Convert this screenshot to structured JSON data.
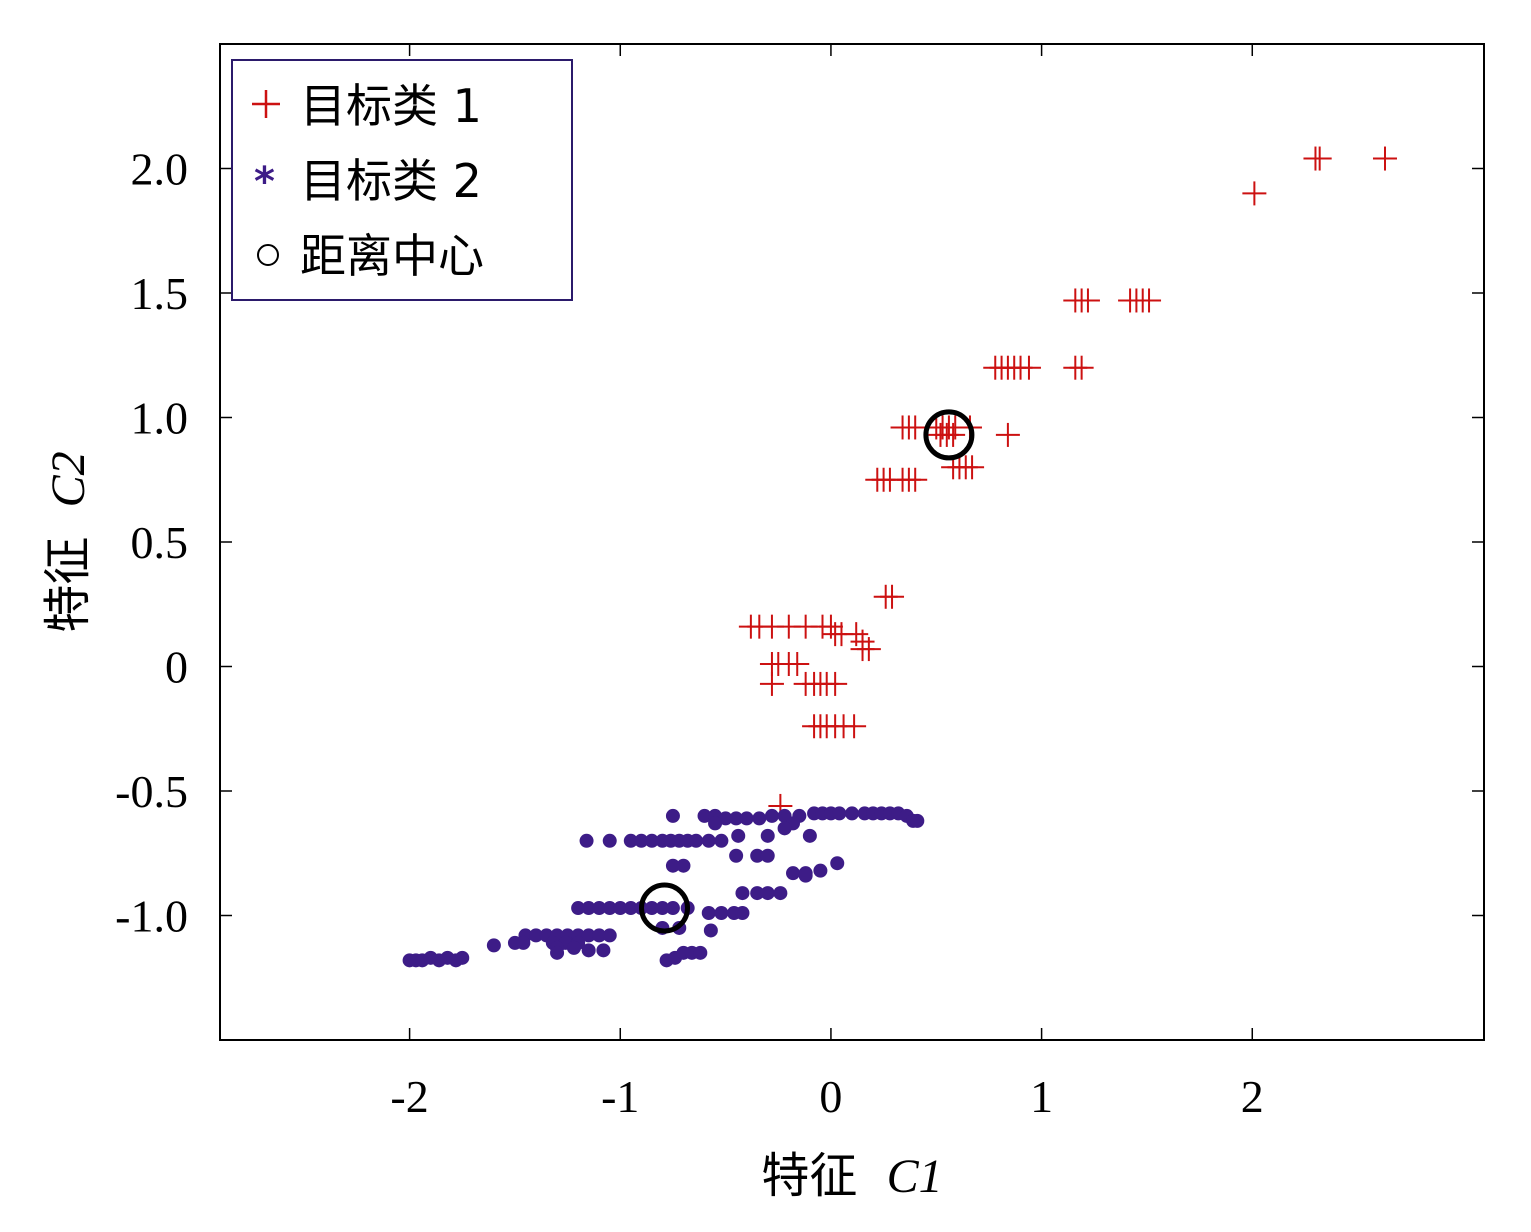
{
  "chart_data": {
    "type": "scatter",
    "title": "",
    "xlabel_prefix": "特征",
    "xlabel_var": "C1",
    "ylabel_prefix": "特征",
    "ylabel_var": "C2",
    "xlim": [
      -2.9,
      3.1
    ],
    "ylim": [
      -1.5,
      2.5
    ],
    "xticks": [
      -2,
      -1,
      0,
      1,
      2
    ],
    "xtick_labels": [
      "-2",
      "-1",
      "0",
      "1",
      "2"
    ],
    "yticks": [
      -1.0,
      -0.5,
      0,
      0.5,
      1.0,
      1.5,
      2.0
    ],
    "ytick_labels": [
      "-1.0",
      "-0.5",
      "0",
      "0.5",
      "1.0",
      "1.5",
      "2.0"
    ],
    "grid": false,
    "legend_position": "top-left",
    "colors": {
      "class1": "#cc1111",
      "class2": "#3d1c87",
      "center": "#000000",
      "legend_border": "#2b1a6b"
    },
    "legend": [
      {
        "marker": "+",
        "label": "目标类 1"
      },
      {
        "marker": "*",
        "label": "目标类 2"
      },
      {
        "marker": "○",
        "label": "距离中心"
      }
    ],
    "series": [
      {
        "name": "目标类 1",
        "marker": "plus",
        "points": [
          [
            2.63,
            2.04
          ],
          [
            2.32,
            2.04
          ],
          [
            2.3,
            2.04
          ],
          [
            2.01,
            1.9
          ],
          [
            1.16,
            1.47
          ],
          [
            1.19,
            1.47
          ],
          [
            1.22,
            1.47
          ],
          [
            1.42,
            1.47
          ],
          [
            1.45,
            1.47
          ],
          [
            1.48,
            1.47
          ],
          [
            1.51,
            1.47
          ],
          [
            0.78,
            1.2
          ],
          [
            0.81,
            1.2
          ],
          [
            0.84,
            1.2
          ],
          [
            0.87,
            1.2
          ],
          [
            0.9,
            1.2
          ],
          [
            0.94,
            1.2
          ],
          [
            1.16,
            1.2
          ],
          [
            1.19,
            1.2
          ],
          [
            0.34,
            0.96
          ],
          [
            0.37,
            0.96
          ],
          [
            0.4,
            0.96
          ],
          [
            0.5,
            0.96
          ],
          [
            0.53,
            0.96
          ],
          [
            0.56,
            0.96
          ],
          [
            0.59,
            0.96
          ],
          [
            0.66,
            0.96
          ],
          [
            0.52,
            0.93
          ],
          [
            0.55,
            0.93
          ],
          [
            0.58,
            0.93
          ],
          [
            0.84,
            0.93
          ],
          [
            0.58,
            0.8
          ],
          [
            0.61,
            0.8
          ],
          [
            0.64,
            0.8
          ],
          [
            0.67,
            0.8
          ],
          [
            0.22,
            0.75
          ],
          [
            0.25,
            0.75
          ],
          [
            0.28,
            0.75
          ],
          [
            0.34,
            0.75
          ],
          [
            0.37,
            0.75
          ],
          [
            0.4,
            0.75
          ],
          [
            0.26,
            0.28
          ],
          [
            0.29,
            0.28
          ],
          [
            -0.38,
            0.16
          ],
          [
            -0.34,
            0.16
          ],
          [
            -0.28,
            0.16
          ],
          [
            -0.2,
            0.16
          ],
          [
            -0.12,
            0.16
          ],
          [
            -0.04,
            0.16
          ],
          [
            0.0,
            0.16
          ],
          [
            0.02,
            0.13
          ],
          [
            0.05,
            0.13
          ],
          [
            0.12,
            0.13
          ],
          [
            0.15,
            0.1
          ],
          [
            0.18,
            0.07
          ],
          [
            0.15,
            0.07
          ],
          [
            -0.28,
            0.01
          ],
          [
            -0.25,
            0.01
          ],
          [
            -0.2,
            0.01
          ],
          [
            -0.16,
            0.01
          ],
          [
            -0.28,
            -0.07
          ],
          [
            -0.12,
            -0.07
          ],
          [
            -0.08,
            -0.07
          ],
          [
            -0.05,
            -0.07
          ],
          [
            -0.02,
            -0.07
          ],
          [
            0.02,
            -0.07
          ],
          [
            -0.08,
            -0.24
          ],
          [
            -0.05,
            -0.24
          ],
          [
            -0.02,
            -0.24
          ],
          [
            0.02,
            -0.24
          ],
          [
            0.06,
            -0.24
          ],
          [
            0.11,
            -0.24
          ],
          [
            -0.24,
            -0.56
          ]
        ]
      },
      {
        "name": "目标类 2",
        "marker": "dot",
        "points": [
          [
            -0.75,
            -0.6
          ],
          [
            -0.6,
            -0.6
          ],
          [
            -0.55,
            -0.6
          ],
          [
            -0.5,
            -0.61
          ],
          [
            -0.45,
            -0.61
          ],
          [
            -0.4,
            -0.61
          ],
          [
            -0.34,
            -0.61
          ],
          [
            -0.28,
            -0.6
          ],
          [
            -0.22,
            -0.6
          ],
          [
            -0.15,
            -0.6
          ],
          [
            -0.08,
            -0.59
          ],
          [
            -0.04,
            -0.59
          ],
          [
            0.0,
            -0.59
          ],
          [
            0.04,
            -0.59
          ],
          [
            0.1,
            -0.59
          ],
          [
            0.16,
            -0.59
          ],
          [
            0.2,
            -0.59
          ],
          [
            0.24,
            -0.59
          ],
          [
            0.28,
            -0.59
          ],
          [
            0.32,
            -0.59
          ],
          [
            0.36,
            -0.6
          ],
          [
            0.39,
            -0.62
          ],
          [
            0.41,
            -0.62
          ],
          [
            -0.55,
            -0.63
          ],
          [
            -0.18,
            -0.63
          ],
          [
            -0.22,
            -0.65
          ],
          [
            -1.16,
            -0.7
          ],
          [
            -1.05,
            -0.7
          ],
          [
            -0.95,
            -0.7
          ],
          [
            -0.9,
            -0.7
          ],
          [
            -0.85,
            -0.7
          ],
          [
            -0.8,
            -0.7
          ],
          [
            -0.76,
            -0.7
          ],
          [
            -0.72,
            -0.7
          ],
          [
            -0.68,
            -0.7
          ],
          [
            -0.64,
            -0.7
          ],
          [
            -0.58,
            -0.7
          ],
          [
            -0.52,
            -0.7
          ],
          [
            -0.44,
            -0.68
          ],
          [
            -0.3,
            -0.68
          ],
          [
            -0.1,
            -0.68
          ],
          [
            -0.45,
            -0.76
          ],
          [
            -0.35,
            -0.76
          ],
          [
            -0.3,
            -0.76
          ],
          [
            -0.75,
            -0.8
          ],
          [
            -0.7,
            -0.8
          ],
          [
            -0.18,
            -0.83
          ],
          [
            -0.12,
            -0.83
          ],
          [
            -0.05,
            -0.82
          ],
          [
            0.03,
            -0.79
          ],
          [
            -0.12,
            -0.84
          ],
          [
            -0.42,
            -0.91
          ],
          [
            -0.35,
            -0.91
          ],
          [
            -0.3,
            -0.91
          ],
          [
            -0.24,
            -0.91
          ],
          [
            -1.2,
            -0.97
          ],
          [
            -1.15,
            -0.97
          ],
          [
            -1.1,
            -0.97
          ],
          [
            -1.05,
            -0.97
          ],
          [
            -1.0,
            -0.97
          ],
          [
            -0.95,
            -0.97
          ],
          [
            -0.9,
            -0.97
          ],
          [
            -0.85,
            -0.97
          ],
          [
            -0.8,
            -0.97
          ],
          [
            -0.75,
            -0.97
          ],
          [
            -0.68,
            -0.97
          ],
          [
            -0.58,
            -0.99
          ],
          [
            -0.52,
            -0.99
          ],
          [
            -0.46,
            -0.99
          ],
          [
            -0.42,
            -0.99
          ],
          [
            -0.8,
            -1.05
          ],
          [
            -0.72,
            -1.05
          ],
          [
            -0.57,
            -1.06
          ],
          [
            -1.45,
            -1.08
          ],
          [
            -1.4,
            -1.08
          ],
          [
            -1.35,
            -1.08
          ],
          [
            -1.3,
            -1.08
          ],
          [
            -1.25,
            -1.08
          ],
          [
            -1.2,
            -1.08
          ],
          [
            -1.15,
            -1.08
          ],
          [
            -1.1,
            -1.08
          ],
          [
            -1.05,
            -1.08
          ],
          [
            -1.5,
            -1.11
          ],
          [
            -1.46,
            -1.11
          ],
          [
            -1.32,
            -1.11
          ],
          [
            -1.26,
            -1.11
          ],
          [
            -1.2,
            -1.11
          ],
          [
            -1.3,
            -1.13
          ],
          [
            -1.22,
            -1.13
          ],
          [
            -1.15,
            -1.14
          ],
          [
            -1.08,
            -1.14
          ],
          [
            -1.3,
            -1.15
          ],
          [
            -1.6,
            -1.12
          ],
          [
            -2.0,
            -1.18
          ],
          [
            -1.97,
            -1.18
          ],
          [
            -1.94,
            -1.18
          ],
          [
            -1.9,
            -1.17
          ],
          [
            -1.86,
            -1.18
          ],
          [
            -1.82,
            -1.17
          ],
          [
            -1.78,
            -1.18
          ],
          [
            -1.75,
            -1.17
          ],
          [
            -0.78,
            -1.18
          ],
          [
            -0.74,
            -1.17
          ],
          [
            -0.7,
            -1.15
          ],
          [
            -0.66,
            -1.15
          ],
          [
            -0.62,
            -1.15
          ]
        ]
      },
      {
        "name": "距离中心",
        "marker": "circle",
        "points": [
          [
            0.56,
            0.93
          ],
          [
            -0.79,
            -0.97
          ]
        ]
      }
    ]
  }
}
